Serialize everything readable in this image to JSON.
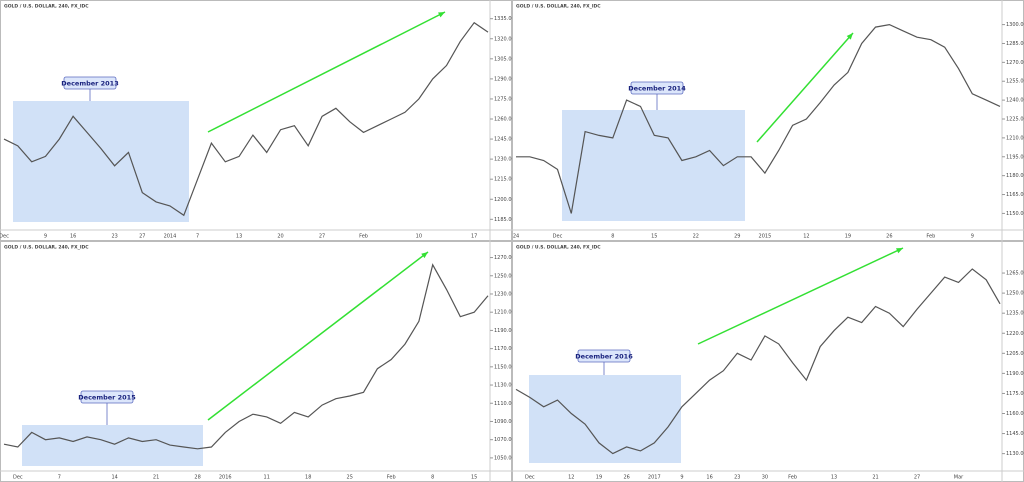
{
  "chart_data": [
    {
      "type": "line",
      "title": "GOLD / U.S. DOLLAR, 240, FX_IDC",
      "annotation": "December 2013",
      "categories": [
        "Dec",
        null,
        null,
        "9",
        null,
        "16",
        null,
        null,
        "23",
        null,
        "27",
        null,
        "2014",
        null,
        "7",
        null,
        null,
        "13",
        null,
        null,
        "20",
        null,
        null,
        "27",
        null,
        null,
        "Feb",
        null,
        null,
        null,
        "10",
        null,
        null,
        null,
        "17",
        null
      ],
      "series": [
        {
          "name": "GOLD",
          "color": "#555555",
          "values": [
            1245,
            1240,
            1228,
            1232,
            1245,
            1262,
            1250,
            1238,
            1225,
            1235,
            1205,
            1198,
            1195,
            1188,
            1215,
            1242,
            1228,
            1232,
            1248,
            1235,
            1252,
            1255,
            1240,
            1262,
            1268,
            1258,
            1250,
            1255,
            1260,
            1265,
            1275,
            1290,
            1300,
            1318,
            1332,
            1325
          ]
        }
      ],
      "ylim": [
        1180,
        1340
      ],
      "yticks": [
        {
          "value": 1185,
          "label": "1185.00"
        },
        {
          "value": 1200,
          "label": "1200.00"
        },
        {
          "value": 1215,
          "label": "1215.00"
        },
        {
          "value": 1230,
          "label": "1230.00"
        },
        {
          "value": 1245,
          "label": "1245.00"
        },
        {
          "value": 1260,
          "label": "1260.00"
        },
        {
          "value": 1275,
          "label": "1275.00"
        },
        {
          "value": 1290,
          "label": "1290.00"
        },
        {
          "value": 1305,
          "label": "1305.00"
        },
        {
          "value": 1320,
          "label": "1320.00"
        },
        {
          "value": 1335,
          "label": "1335.00"
        }
      ]
    },
    {
      "type": "line",
      "title": "GOLD / U.S. DOLLAR, 240, FX_IDC",
      "annotation": "December 2014",
      "categories": [
        "24",
        null,
        null,
        "Dec",
        null,
        null,
        null,
        "8",
        null,
        null,
        "15",
        null,
        null,
        "22",
        null,
        null,
        "29",
        null,
        "2015",
        null,
        null,
        "12",
        null,
        null,
        "19",
        null,
        null,
        "26",
        null,
        null,
        "Feb",
        null,
        null,
        "9",
        null,
        null
      ],
      "series": [
        {
          "name": "GOLD",
          "color": "#555555",
          "values": [
            1195,
            1195,
            1192,
            1185,
            1150,
            1215,
            1212,
            1210,
            1240,
            1235,
            1212,
            1210,
            1192,
            1195,
            1200,
            1188,
            1195,
            1195,
            1182,
            1200,
            1220,
            1225,
            1238,
            1252,
            1262,
            1285,
            1298,
            1300,
            1295,
            1290,
            1288,
            1282,
            1265,
            1245,
            1240,
            1235
          ]
        }
      ],
      "ylim": [
        1140,
        1310
      ],
      "yticks": [
        {
          "value": 1150,
          "label": "1150.00"
        },
        {
          "value": 1165,
          "label": "1165.00"
        },
        {
          "value": 1180,
          "label": "1180.00"
        },
        {
          "value": 1195,
          "label": "1195.00"
        },
        {
          "value": 1210,
          "label": "1210.00"
        },
        {
          "value": 1225,
          "label": "1225.00"
        },
        {
          "value": 1240,
          "label": "1240.00"
        },
        {
          "value": 1255,
          "label": "1255.00"
        },
        {
          "value": 1270,
          "label": "1270.00"
        },
        {
          "value": 1285,
          "label": "1285.00"
        },
        {
          "value": 1300,
          "label": "1300.00"
        }
      ]
    },
    {
      "type": "line",
      "title": "GOLD / U.S. DOLLAR, 240, FX_IDC",
      "annotation": "December 2015",
      "categories": [
        null,
        "Dec",
        null,
        null,
        "7",
        null,
        null,
        null,
        "14",
        null,
        null,
        "21",
        null,
        null,
        "28",
        null,
        "2016",
        null,
        null,
        "11",
        null,
        null,
        "18",
        null,
        null,
        "25",
        null,
        null,
        "Feb",
        null,
        null,
        "8",
        null,
        null,
        "15",
        null
      ],
      "series": [
        {
          "name": "GOLD",
          "color": "#555555",
          "values": [
            1065,
            1062,
            1078,
            1070,
            1072,
            1068,
            1073,
            1070,
            1065,
            1072,
            1068,
            1070,
            1064,
            1062,
            1060,
            1062,
            1078,
            1090,
            1098,
            1095,
            1088,
            1100,
            1095,
            1108,
            1115,
            1118,
            1122,
            1148,
            1158,
            1175,
            1200,
            1262,
            1235,
            1205,
            1210,
            1228
          ]
        }
      ],
      "ylim": [
        1040,
        1275
      ],
      "yticks": [
        {
          "value": 1050,
          "label": "1050.00"
        },
        {
          "value": 1070,
          "label": "1070.00"
        },
        {
          "value": 1090,
          "label": "1090.00"
        },
        {
          "value": 1110,
          "label": "1110.00"
        },
        {
          "value": 1130,
          "label": "1130.00"
        },
        {
          "value": 1150,
          "label": "1150.00"
        },
        {
          "value": 1170,
          "label": "1170.00"
        },
        {
          "value": 1190,
          "label": "1190.00"
        },
        {
          "value": 1210,
          "label": "1210.00"
        },
        {
          "value": 1230,
          "label": "1230.00"
        },
        {
          "value": 1250,
          "label": "1250.00"
        },
        {
          "value": 1270,
          "label": "1270.00"
        }
      ]
    },
    {
      "type": "line",
      "title": "GOLD / U.S. DOLLAR, 240, FX_IDC",
      "annotation": "December 2016",
      "categories": [
        null,
        "Dec",
        null,
        null,
        "12",
        null,
        "19",
        null,
        "26",
        null,
        "2017",
        null,
        "9",
        null,
        "16",
        null,
        "23",
        null,
        "30",
        null,
        "Feb",
        null,
        null,
        "13",
        null,
        null,
        "21",
        null,
        null,
        "27",
        null,
        null,
        "Mar",
        null,
        null,
        null
      ],
      "series": [
        {
          "name": "GOLD",
          "color": "#555555",
          "values": [
            1178,
            1172,
            1165,
            1170,
            1160,
            1152,
            1138,
            1130,
            1135,
            1132,
            1138,
            1150,
            1165,
            1175,
            1185,
            1192,
            1205,
            1200,
            1218,
            1212,
            1198,
            1185,
            1210,
            1222,
            1232,
            1228,
            1240,
            1235,
            1225,
            1238,
            1250,
            1262,
            1258,
            1268,
            1260,
            1242
          ]
        }
      ],
      "ylim": [
        1120,
        1280
      ],
      "yticks": [
        {
          "value": 1130,
          "label": "1130.00"
        },
        {
          "value": 1145,
          "label": "1145.00"
        },
        {
          "value": 1160,
          "label": "1160.00"
        },
        {
          "value": 1175,
          "label": "1175.00"
        },
        {
          "value": 1190,
          "label": "1190.00"
        },
        {
          "value": 1205,
          "label": "1205.00"
        },
        {
          "value": 1220,
          "label": "1220.00"
        },
        {
          "value": 1235,
          "label": "1235.00"
        },
        {
          "value": 1250,
          "label": "1250.00"
        },
        {
          "value": 1265,
          "label": "1265.00"
        }
      ]
    }
  ]
}
